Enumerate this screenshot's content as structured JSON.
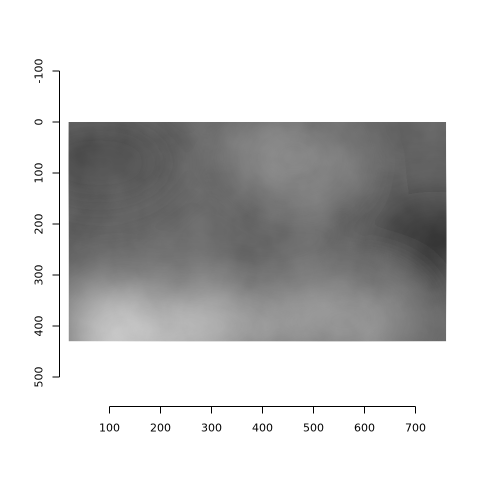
{
  "chart_data": {
    "type": "heatmap",
    "colormap": "grayscale",
    "image_x_range": [
      20,
      760
    ],
    "image_y_range": [
      0,
      430
    ],
    "y_axis_reversed": true,
    "x_axis": {
      "ticks": [
        100,
        200,
        300,
        400,
        500,
        600,
        700
      ],
      "tick_labels": [
        "100",
        "200",
        "300",
        "400",
        "500",
        "600",
        "700"
      ],
      "range": [
        100,
        700
      ]
    },
    "y_axis": {
      "ticks": [
        -100,
        0,
        100,
        200,
        300,
        400,
        500
      ],
      "tick_labels": [
        "-100",
        "0",
        "100",
        "200",
        "300",
        "400",
        "500"
      ],
      "range": [
        -100,
        500
      ]
    },
    "intensity_regions": [
      {
        "label": "bright region",
        "x": 130,
        "y": 410,
        "level": 0.95
      },
      {
        "label": "bright region",
        "x": 290,
        "y": 400,
        "level": 0.75
      },
      {
        "label": "light patch",
        "x": 460,
        "y": 70,
        "level": 0.55
      },
      {
        "label": "light patch",
        "x": 560,
        "y": 390,
        "level": 0.6
      },
      {
        "label": "dark region",
        "x": 740,
        "y": 230,
        "level": 0.05
      },
      {
        "label": "dark region",
        "x": 80,
        "y": 80,
        "level": 0.22
      }
    ],
    "background_level": 0.32,
    "grid": false,
    "legend": "none"
  }
}
